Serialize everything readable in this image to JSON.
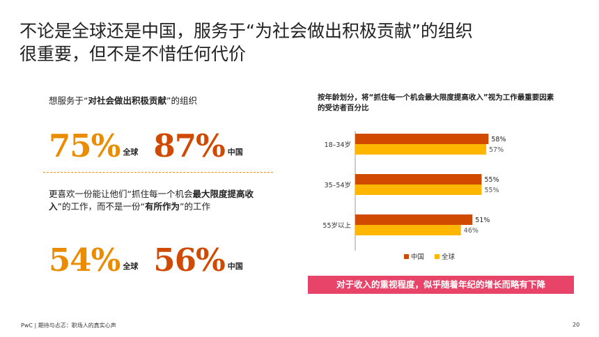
{
  "title": {
    "line1": "不论是全球还是中国，服务于“为社会做出积极贡献”的组织",
    "line2": "很重要，但不是不惜任何代价"
  },
  "block1": {
    "note_prefix": "想服务于“",
    "note_bold": "对社会做出积极贡献",
    "note_suffix": "”的组织",
    "global_pct": "75%",
    "global_label": "全球",
    "china_pct": "87%",
    "china_label": "中国"
  },
  "block2": {
    "note_a": "更喜欢一份能让他们“抓住每一个机会",
    "note_b_bold": "最大限度提高收入",
    "note_c": "”的工作，而不是一份“",
    "note_d_bold": "有所作为",
    "note_e": "”的工作",
    "global_pct": "54%",
    "global_label": "全球",
    "china_pct": "56%",
    "china_label": "中国"
  },
  "chart_data": {
    "type": "bar",
    "orientation": "horizontal",
    "title": "按年龄划分，将“抓住每一个机会最大限度提高收入”视为工作最重要因素的受访者百分比",
    "categories": [
      "18–34岁",
      "35–54岁",
      "55岁以上"
    ],
    "series": [
      {
        "name": "中国",
        "values": [
          58,
          55,
          51
        ],
        "labels": [
          "58%",
          "55%",
          "51%"
        ],
        "color": "#d04a02"
      },
      {
        "name": "全球",
        "values": [
          57,
          55,
          46
        ],
        "labels": [
          "57%",
          "55%",
          "46%"
        ],
        "color": "#ffb600"
      }
    ],
    "xlim": [
      0,
      100
    ],
    "legend": "bottom-center",
    "grid": false
  },
  "callout": "对于收入的重视程度，似乎随着年纪的增长而略有下降",
  "footer": "PwC | 期待与忐忑：职场人的真实心声",
  "page_number": "20",
  "colors": {
    "accent_red": "#e0301e",
    "accent_orange": "#eb8c00",
    "china": "#d04a02",
    "global": "#ffb600",
    "callout_bg": "#e8446a"
  }
}
